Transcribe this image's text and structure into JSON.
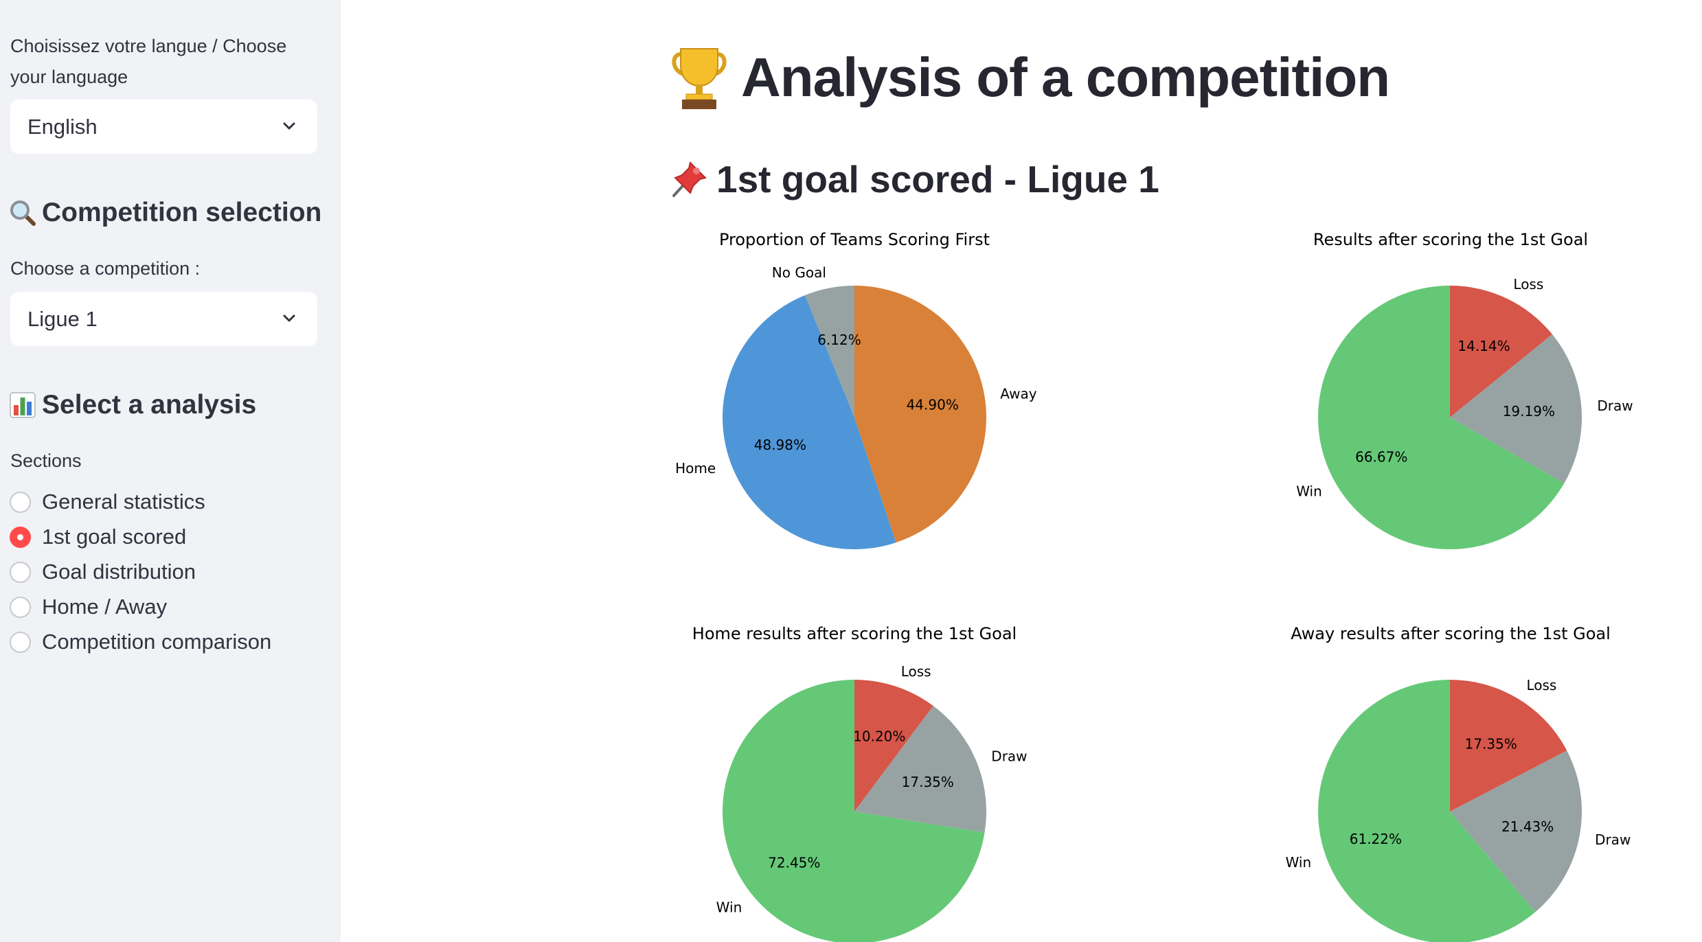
{
  "sidebar": {
    "language_label": "Choisissez votre langue / Choose your language",
    "language_value": "English",
    "competition_heading": "Competition selection",
    "competition_label": "Choose a competition :",
    "competition_value": "Ligue 1",
    "analysis_heading": "Select a analysis",
    "sections_label": "Sections",
    "sections": [
      {
        "label": "General statistics",
        "selected": false
      },
      {
        "label": "1st goal scored",
        "selected": true
      },
      {
        "label": "Goal distribution",
        "selected": false
      },
      {
        "label": "Home / Away",
        "selected": false
      },
      {
        "label": "Competition comparison",
        "selected": false
      }
    ]
  },
  "main": {
    "title": "Analysis of a competition",
    "title_icon": "trophy-icon",
    "subtitle": "1st goal scored - Ligue 1",
    "subtitle_icon": "pushpin-icon"
  },
  "colors": {
    "accent": "#ff4b4b",
    "sidebar_bg": "#f0f2f6",
    "home": "#4e96d8",
    "away": "#d98139",
    "no_goal": "#97a3a3",
    "win": "#65c877",
    "draw": "#97a3a3",
    "loss": "#d65649"
  },
  "chart_data": [
    {
      "type": "pie",
      "title": "Proportion of Teams Scoring First",
      "slices": [
        {
          "label": "Away",
          "value": 44.9,
          "pct_label": "44.90%",
          "color": "#d98139"
        },
        {
          "label": "Home",
          "value": 48.98,
          "pct_label": "48.98%",
          "color": "#4e96d8"
        },
        {
          "label": "No Goal",
          "value": 6.12,
          "pct_label": "6.12%",
          "color": "#97a3a3"
        }
      ]
    },
    {
      "type": "pie",
      "title": "Results after scoring the 1st Goal",
      "slices": [
        {
          "label": "Loss",
          "value": 14.14,
          "pct_label": "14.14%",
          "color": "#d65649"
        },
        {
          "label": "Draw",
          "value": 19.19,
          "pct_label": "19.19%",
          "color": "#97a3a3"
        },
        {
          "label": "Win",
          "value": 66.67,
          "pct_label": "66.67%",
          "color": "#65c877"
        }
      ]
    },
    {
      "type": "pie",
      "title": "Home results after scoring the 1st Goal",
      "slices": [
        {
          "label": "Loss",
          "value": 10.2,
          "pct_label": "10.20%",
          "color": "#d65649"
        },
        {
          "label": "Draw",
          "value": 17.35,
          "pct_label": "17.35%",
          "color": "#97a3a3"
        },
        {
          "label": "Win",
          "value": 72.45,
          "pct_label": "72.45%",
          "color": "#65c877"
        }
      ]
    },
    {
      "type": "pie",
      "title": "Away results after scoring the 1st Goal",
      "slices": [
        {
          "label": "Loss",
          "value": 17.35,
          "pct_label": "17.35%",
          "color": "#d65649"
        },
        {
          "label": "Draw",
          "value": 21.43,
          "pct_label": "21.43%",
          "color": "#97a3a3"
        },
        {
          "label": "Win",
          "value": 61.22,
          "pct_label": "61.22%",
          "color": "#65c877"
        }
      ]
    }
  ]
}
